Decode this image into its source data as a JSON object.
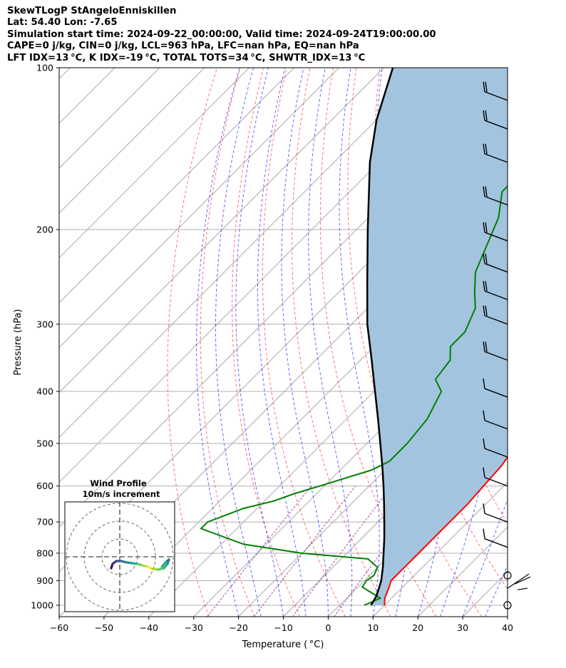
{
  "header": {
    "line1": "SkewTLogP StAngeloEnniskillen",
    "line2": "Lat: 54.40   Lon: -7.65",
    "line3": "Simulation start time: 2024-09-22_00:00:00, Valid time: 2024-09-24T19:00:00.00",
    "line4": "CAPE=0 j/kg, CIN=0 j/kg, LCL=963 hPa, LFC=nan hPa, EQ=nan hPa",
    "line5": "LFT IDX=13$^\\circ$C, K IDX=-19$^\\circ$C, TOTAL TOTS=34$^\\circ$C, SHWTR_IDX=13$^\\circ$C"
  },
  "header_display": {
    "line5": "LFT IDX=13 °C, K IDX=-19 °C, TOTAL TOTS=34 °C, SHWTR_IDX=13 °C"
  },
  "chart_data": {
    "type": "line",
    "subtype": "skew-t log-p",
    "xlabel": "Temperature ($^\\circ$C)",
    "xlabel_display": "Temperature ( °C)",
    "ylabel": "Pressure (hPa)",
    "xlim": [
      -60,
      40
    ],
    "ylim": [
      1050,
      100
    ],
    "y_scale": "log",
    "x_ticks": [
      "−60",
      "−50",
      "−40",
      "−30",
      "−20",
      "−10",
      "0",
      "10",
      "20",
      "30",
      "40"
    ],
    "y_ticks": [
      "100",
      "200",
      "300",
      "400",
      "500",
      "600",
      "700",
      "800",
      "900",
      "1000"
    ],
    "grid": true,
    "colors": {
      "temperature": "#ff0000",
      "dewpoint": "#008000",
      "parcel": "#000000",
      "dry_adiabat": "#ff0000",
      "moist_adiabat": "#0000ff",
      "mixing_ratio": "#800080",
      "isotherm": "#999999",
      "fill": "#a3c4de"
    },
    "series": [
      {
        "key": "temperature",
        "pressure": [
          1000,
          970,
          925,
          900,
          850,
          800,
          750,
          700,
          650,
          600,
          550,
          500,
          450,
          400,
          350,
          325,
          300,
          275,
          250,
          235,
          225,
          200,
          175,
          150,
          125,
          100
        ],
        "values": [
          10.0,
          8.5,
          7.0,
          6.0,
          6.0,
          6.0,
          6.0,
          6.0,
          6.0,
          5.5,
          5.0,
          3.5,
          1.0,
          -3.0,
          -6.0,
          -6.5,
          -7.0,
          -8.0,
          -10.0,
          -11.0,
          -10.0,
          -10.0,
          -11.5,
          -15.0,
          -20.0,
          -26.0
        ]
      },
      {
        "key": "dewpoint",
        "pressure": [
          1000,
          970,
          925,
          900,
          880,
          850,
          820,
          800,
          770,
          720,
          700,
          660,
          640,
          620,
          600,
          560,
          540,
          500,
          450,
          400,
          380,
          350,
          330,
          310,
          280,
          260,
          240,
          210,
          190,
          170,
          155,
          140,
          120,
          100
        ],
        "values": [
          5.5,
          7.5,
          1.0,
          0.5,
          1.0,
          0.0,
          -4.0,
          -20.0,
          -35.0,
          -48.0,
          -48.0,
          -43.0,
          -38.0,
          -35.0,
          -31.0,
          -23.0,
          -21.0,
          -21.0,
          -22.0,
          -25.0,
          -29.0,
          -30.0,
          -33.0,
          -33.0,
          -36.0,
          -40.0,
          -44.0,
          -48.0,
          -51.0,
          -56.0,
          -56.0,
          -50.0,
          -44.0,
          -38.0
        ]
      },
      {
        "key": "parcel",
        "pressure": [
          1000,
          963,
          925,
          900,
          850,
          800,
          750,
          700,
          650,
          600,
          550,
          500,
          450,
          400,
          350,
          300,
          250,
          200,
          150,
          125,
          100
        ],
        "values": [
          7.0,
          6.2,
          4.8,
          3.8,
          1.2,
          -1.8,
          -5.0,
          -8.6,
          -12.5,
          -16.8,
          -21.6,
          -27.0,
          -33.0,
          -39.8,
          -47.5,
          -56.5,
          -66.0,
          -77.5,
          -92.0,
          -100.0,
          -108.0
        ]
      }
    ],
    "wind_barbs": {
      "pressure": [
        1000,
        880,
        780,
        700,
        600,
        530,
        470,
        410,
        350,
        300,
        270,
        240,
        210,
        180,
        150,
        130,
        115
      ],
      "count": 17
    },
    "inset": {
      "title": "Wind Profile",
      "subtitle": "10m/s increment",
      "rings": 3
    }
  }
}
